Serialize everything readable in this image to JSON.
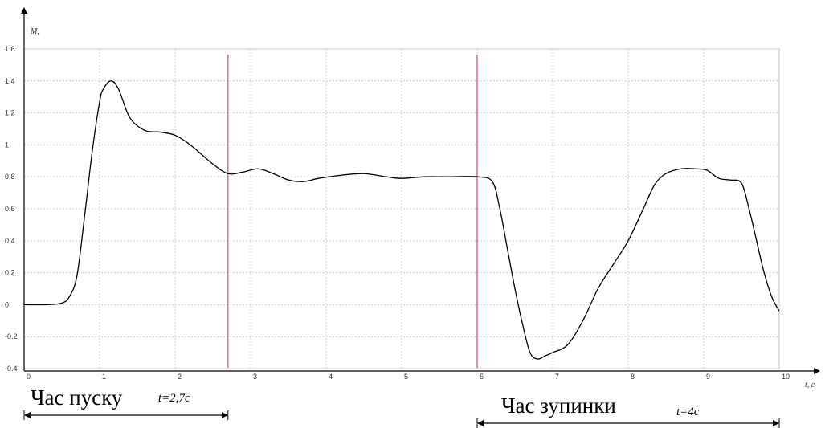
{
  "chart_data": {
    "type": "line",
    "xlabel": "t, c",
    "ylabel": "M, ",
    "xlim": [
      0,
      10
    ],
    "ylim": [
      -0.4,
      1.6
    ],
    "grid": true,
    "x_ticks": [
      "0",
      "1",
      "2",
      "3",
      "4",
      "5",
      "6",
      "7",
      "8",
      "9",
      "10"
    ],
    "y_ticks": [
      "-0.4",
      "-0.2",
      "0",
      "0.2",
      "0.4",
      "0.6",
      "0.8",
      "1",
      "1.2",
      "1.4",
      "1.6"
    ],
    "series": [
      {
        "color": "#000000",
        "x": [
          0,
          0.3,
          0.5,
          0.6,
          0.7,
          0.8,
          0.9,
          1.0,
          1.05,
          1.15,
          1.25,
          1.4,
          1.6,
          1.8,
          2.0,
          2.2,
          2.5,
          2.7,
          2.9,
          3.1,
          3.3,
          3.5,
          3.7,
          3.9,
          4.2,
          4.5,
          4.8,
          5.0,
          5.3,
          5.6,
          6.0,
          6.2,
          6.3,
          6.4,
          6.5,
          6.6,
          6.7,
          6.8,
          6.9,
          7.0,
          7.2,
          7.4,
          7.6,
          7.8,
          8.0,
          8.2,
          8.35,
          8.5,
          8.7,
          8.9,
          9.05,
          9.2,
          9.35,
          9.5,
          9.6,
          9.7,
          9.8,
          9.9,
          10.0
        ],
        "y": [
          0,
          0,
          0.01,
          0.05,
          0.18,
          0.55,
          0.95,
          1.27,
          1.35,
          1.4,
          1.35,
          1.17,
          1.09,
          1.08,
          1.06,
          1.0,
          0.88,
          0.82,
          0.83,
          0.85,
          0.82,
          0.78,
          0.77,
          0.79,
          0.81,
          0.82,
          0.8,
          0.79,
          0.8,
          0.8,
          0.8,
          0.77,
          0.6,
          0.35,
          0.1,
          -0.12,
          -0.3,
          -0.34,
          -0.32,
          -0.3,
          -0.25,
          -0.1,
          0.1,
          0.25,
          0.4,
          0.6,
          0.75,
          0.82,
          0.85,
          0.85,
          0.84,
          0.79,
          0.78,
          0.76,
          0.6,
          0.4,
          0.2,
          0.05,
          -0.04
        ]
      }
    ],
    "markers": [
      {
        "x": 2.7,
        "color": "#e0607a"
      },
      {
        "x": 6.0,
        "color": "#e0607a"
      }
    ]
  },
  "annotations": {
    "start": {
      "label": "Час пуску",
      "value": "t=2,7c",
      "x_range": [
        0,
        2.7
      ]
    },
    "stop": {
      "label": "Час зупинки",
      "value": "t=4c",
      "x_range": [
        6,
        10
      ]
    }
  }
}
